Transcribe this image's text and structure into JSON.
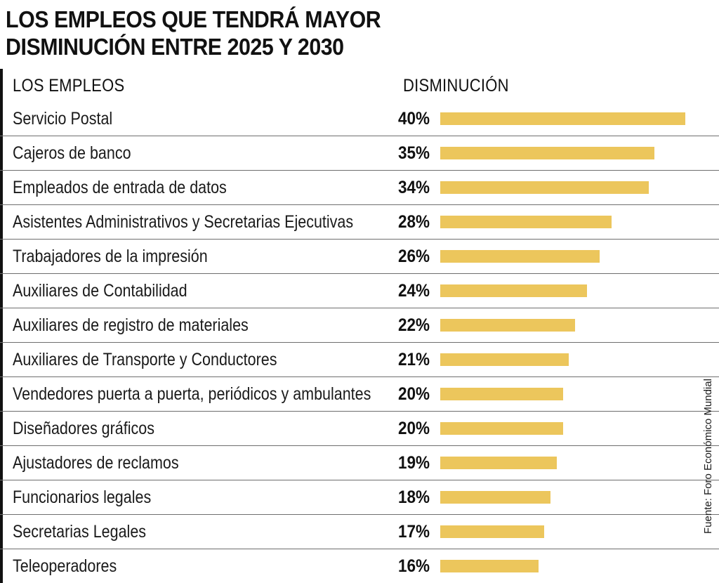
{
  "title_lines": [
    "LOS EMPLEOS QUE TENDRÁ MAYOR",
    "DISMINUCIÓN ENTRE 2025 Y 2030"
  ],
  "source": "Fuente: Foro Económico Mundial",
  "colors": {
    "bar": "#ecc65c",
    "text": "#1a1a1a",
    "rule": "#6e6e6e"
  },
  "chart_data": {
    "type": "bar",
    "orientation": "horizontal",
    "title": "LOS EMPLEOS QUE TENDRÁ MAYOR DISMINUCIÓN ENTRE 2025 Y 2030",
    "category_header": "LOS EMPLEOS",
    "value_header": "DISMINUCIÓN",
    "unit": "%",
    "xlim": [
      0,
      40
    ],
    "categories": [
      "Servicio Postal",
      "Cajeros de banco",
      "Empleados de entrada de datos",
      "Asistentes Administrativos y Secretarias Ejecutivas",
      "Trabajadores de la impresión",
      "Auxiliares de Contabilidad",
      "Auxiliares de registro de materiales",
      "Auxiliares de Transporte y Conductores",
      "Vendedores puerta a puerta, periódicos y ambulantes",
      "Diseñadores gráficos",
      "Ajustadores de reclamos",
      "Funcionarios legales",
      "Secretarias Legales",
      "Teleoperadores"
    ],
    "values": [
      40,
      35,
      34,
      28,
      26,
      24,
      22,
      21,
      20,
      20,
      19,
      18,
      17,
      16
    ],
    "value_labels": [
      "40%",
      "35%",
      "34%",
      "28%",
      "26%",
      "24%",
      "22%",
      "21%",
      "20%",
      "20%",
      "19%",
      "18%",
      "17%",
      "16%"
    ]
  }
}
